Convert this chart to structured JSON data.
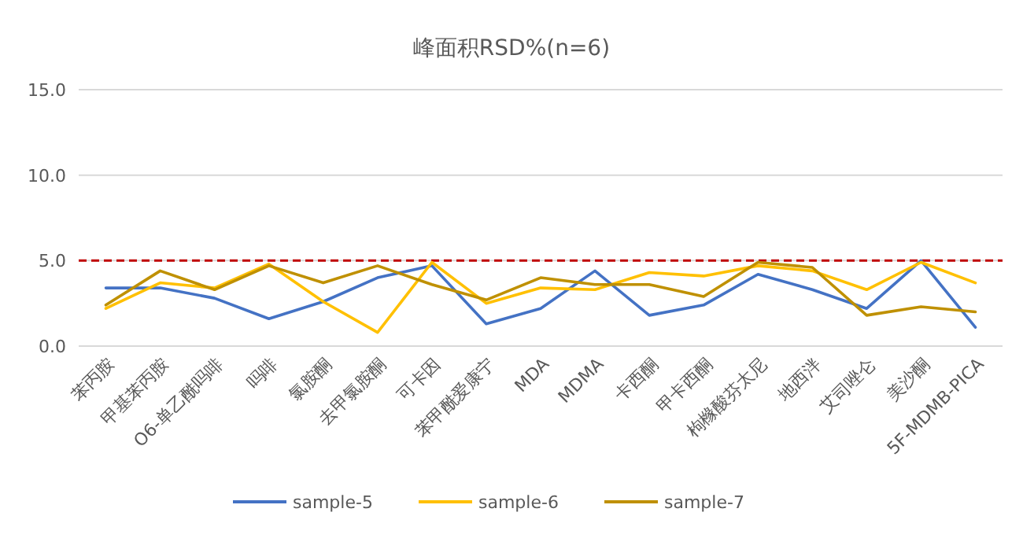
{
  "chart_data": {
    "type": "line",
    "title": "峰面积RSD%(n=6)",
    "categories": [
      "苯丙胺",
      "甲基苯丙胺",
      "O6-单乙酰吗啡",
      "吗啡",
      "氯胺酮",
      "去甲氯胺酮",
      "可卡因",
      "苯甲酰爱康宁",
      "MDA",
      "MDMA",
      "卡西酮",
      "甲卡西酮",
      "枸橼酸芬太尼",
      "地西泮",
      "艾司唑仑",
      "美沙酮",
      "5F-MDMB-PICA"
    ],
    "series": [
      {
        "name": "sample-5",
        "color": "#4472c4",
        "values": [
          3.4,
          3.4,
          2.8,
          1.6,
          2.6,
          4.0,
          4.7,
          1.3,
          2.2,
          4.4,
          1.8,
          2.4,
          4.2,
          3.3,
          2.2,
          5.0,
          1.1
        ]
      },
      {
        "name": "sample-6",
        "color": "#ffc000",
        "values": [
          2.2,
          3.7,
          3.4,
          4.8,
          2.6,
          0.8,
          4.9,
          2.5,
          3.4,
          3.3,
          4.3,
          4.1,
          4.7,
          4.4,
          3.3,
          4.9,
          3.7
        ]
      },
      {
        "name": "sample-7",
        "color": "#bf9000",
        "values": [
          2.4,
          4.4,
          3.3,
          4.7,
          3.7,
          4.7,
          3.6,
          2.7,
          4.0,
          3.6,
          3.6,
          2.9,
          4.9,
          4.6,
          1.8,
          2.3,
          2.0
        ]
      }
    ],
    "ylim": [
      0,
      15
    ],
    "yticks": [
      {
        "value": 0,
        "label": "0.0"
      },
      {
        "value": 5,
        "label": "5.0"
      },
      {
        "value": 10,
        "label": "10.0"
      },
      {
        "value": 15,
        "label": "15.0"
      }
    ],
    "ref_lines": [
      {
        "axis": "y",
        "value": 5,
        "color": "#c00000",
        "line_style": "dashed"
      }
    ],
    "grid": "y",
    "legend": "bottom",
    "marker": "none",
    "line_style": "solid"
  }
}
